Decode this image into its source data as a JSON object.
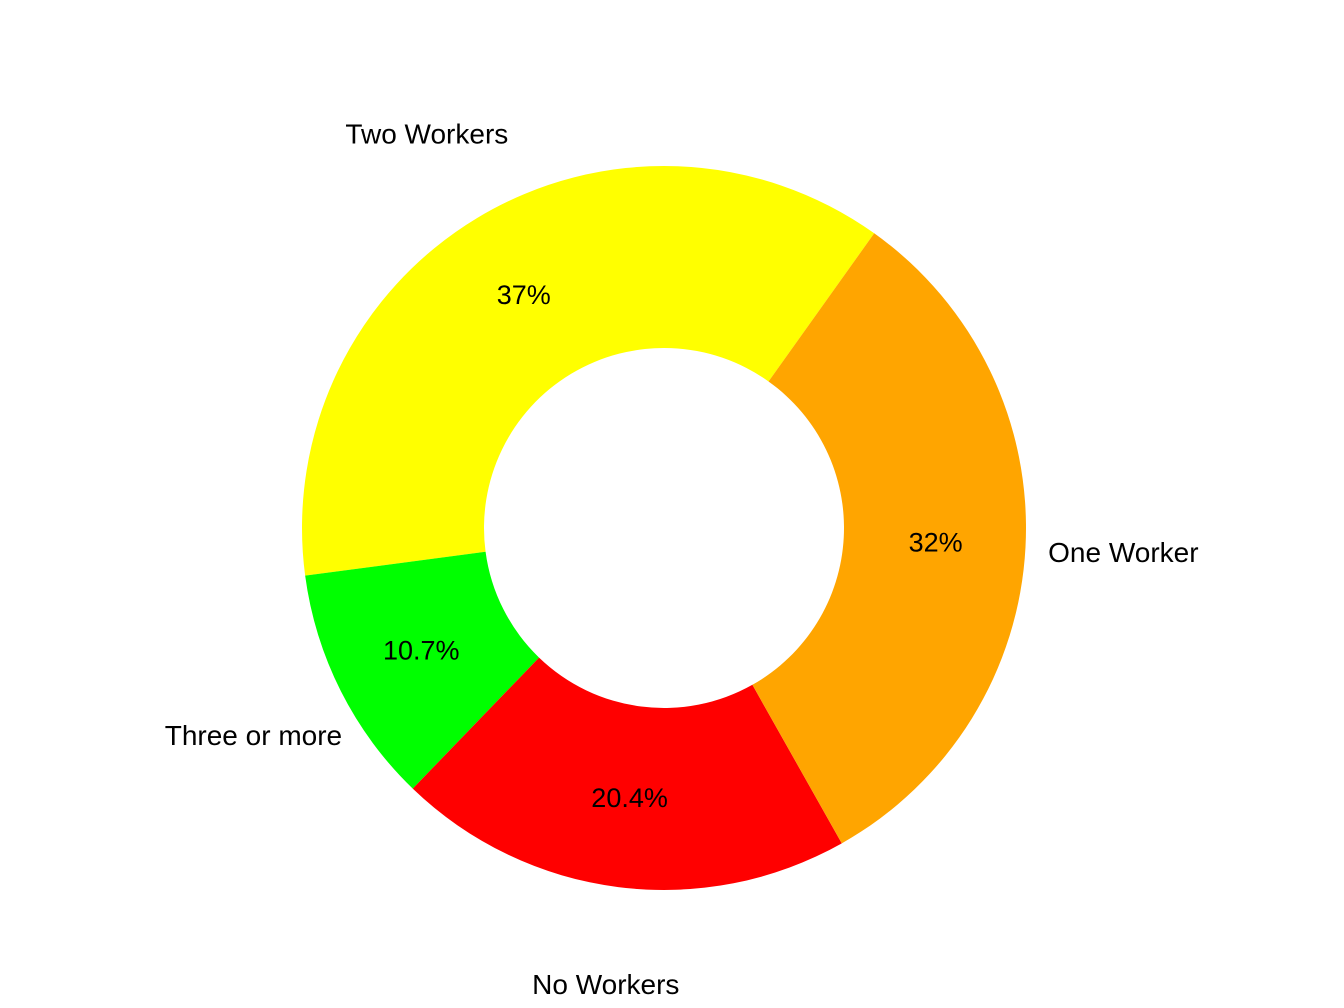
{
  "chart_data": {
    "type": "pie",
    "style": "donut",
    "categories": [
      "Two Workers",
      "Three or more",
      "No Workers",
      "One Worker"
    ],
    "values": [
      37,
      10.7,
      20.4,
      32
    ],
    "value_labels": [
      "37%",
      "10.7%",
      "20.4%",
      "32%"
    ],
    "colors": [
      "#FFFF00",
      "#00FF00",
      "#FF0000",
      "#FFA500"
    ],
    "title": "",
    "legend": "none",
    "label_placement": "category names outside ring, percentages inside ring"
  }
}
